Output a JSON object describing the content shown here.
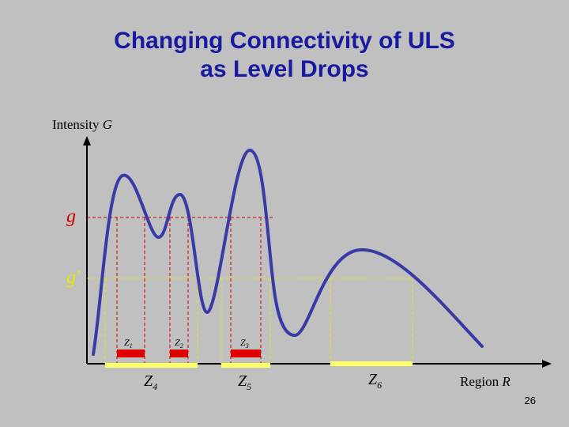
{
  "slide": {
    "title_line1": "Changing Connectivity of ULS",
    "title_line2": "as Level Drops",
    "page_number": "26"
  },
  "axes": {
    "y_label_text": "Intensity ",
    "y_label_symbol": "G",
    "x_label_text": "Region ",
    "x_label_symbol": "R"
  },
  "levels": {
    "g": "g",
    "g_prime": "g′"
  },
  "regions": {
    "z1": "Z",
    "z1_sub": "1",
    "z2": "Z",
    "z2_sub": "2",
    "z3": "Z",
    "z3_sub": "3",
    "z4": "Z",
    "z4_sub": "4",
    "z5": "Z",
    "z5_sub": "5",
    "z6": "Z",
    "z6_sub": "6"
  },
  "colors": {
    "curve": "#3a3aa6",
    "level_g": "#cc0000",
    "level_g_prime": "#e6e600",
    "region_red": "#dd0000",
    "region_yellow": "#ffff66",
    "axis": "#000000"
  }
}
